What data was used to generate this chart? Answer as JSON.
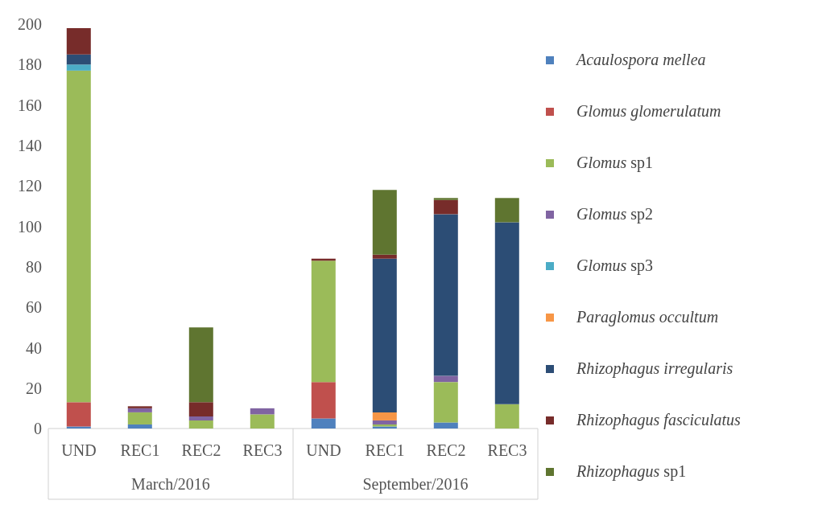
{
  "chart_data": {
    "type": "bar",
    "stacked": true,
    "categories": [
      "UND",
      "REC1",
      "REC2",
      "REC3",
      "UND",
      "REC1",
      "REC2",
      "REC3"
    ],
    "annotations": [
      "March/2016",
      "September/2016"
    ],
    "series": [
      {
        "name": "Acaulospora mellea",
        "color": "#4f81bd",
        "values": [
          1,
          2,
          0,
          0,
          5,
          1,
          3,
          0
        ]
      },
      {
        "name": "Glomus glomerulatum",
        "color": "#c0504d",
        "values": [
          12,
          0,
          0,
          0,
          18,
          0,
          0,
          0
        ]
      },
      {
        "name": "Glomus sp1",
        "color": "#9bbb59",
        "values": [
          164,
          6,
          4,
          7,
          60,
          1,
          20,
          12
        ]
      },
      {
        "name": "Glomus sp2",
        "color": "#8064a2",
        "values": [
          0,
          2,
          2,
          3,
          0,
          2,
          3,
          0
        ]
      },
      {
        "name": "Glomus sp3",
        "color": "#4bacc6",
        "values": [
          3,
          0,
          0,
          0,
          0,
          0,
          0,
          0
        ]
      },
      {
        "name": "Paraglomus occultum",
        "color": "#f79646",
        "values": [
          0,
          0,
          0,
          0,
          0,
          4,
          0,
          0
        ]
      },
      {
        "name": "Rhizophagus irregularis",
        "color": "#2c4d75",
        "values": [
          5,
          0,
          0,
          0,
          0,
          76,
          80,
          90
        ]
      },
      {
        "name": "Rhizophagus fasciculatus",
        "color": "#772c2a",
        "values": [
          13,
          1,
          7,
          0,
          1,
          2,
          7,
          0
        ]
      },
      {
        "name": "Rhizophagus sp1",
        "color": "#5f7530",
        "values": [
          0,
          0,
          37,
          0,
          0,
          32,
          1,
          12
        ]
      }
    ],
    "ylim": [
      0,
      200
    ],
    "yticks": [
      0,
      20,
      40,
      60,
      80,
      100,
      120,
      140,
      160,
      180,
      200
    ],
    "grid": false,
    "legend": "right"
  }
}
